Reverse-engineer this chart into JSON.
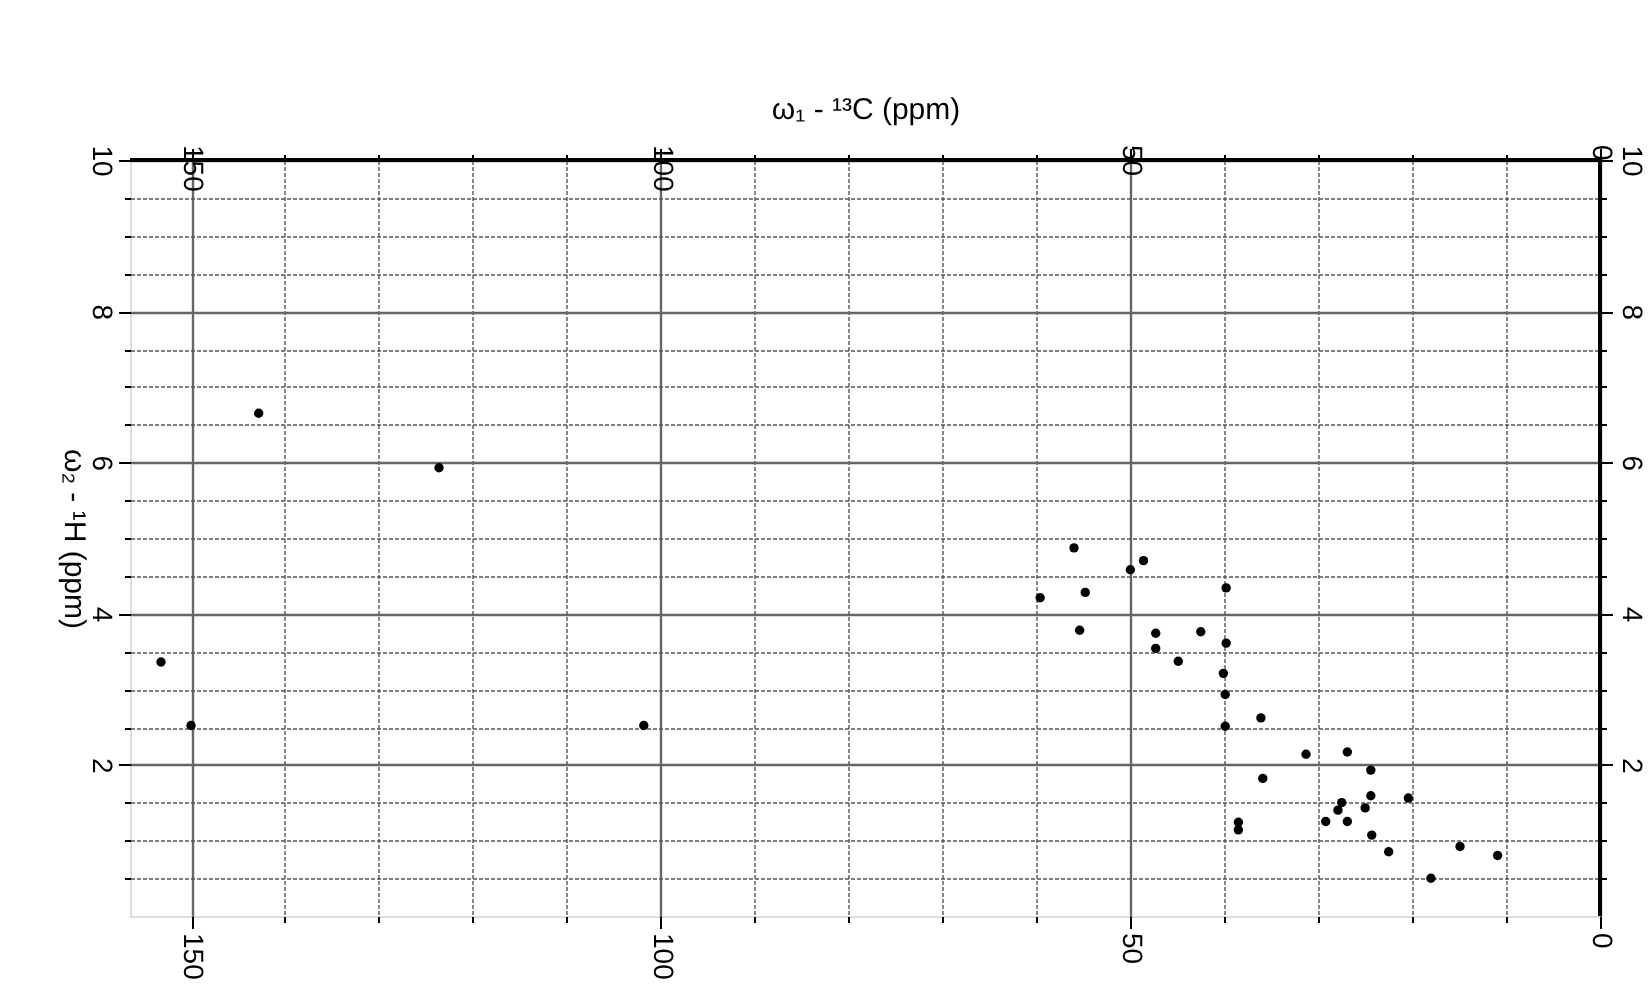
{
  "chart_data": {
    "type": "scatter",
    "xlabel": "ω₁ - ¹³C  (ppm)",
    "ylabel": "ω₂ - ¹H (ppm)",
    "x": [
      142.8,
      123.6,
      153.2,
      150.0,
      101.8,
      56.0,
      50.0,
      48.6,
      59.6,
      54.8,
      55.4,
      47.3,
      47.3,
      44.9,
      42.5,
      39.8,
      39.8,
      40.1,
      39.9,
      39.9,
      36.1,
      35.9,
      31.3,
      38.5,
      38.5,
      29.2,
      27.9,
      27.5,
      26.9,
      24.4,
      24.4,
      24.3,
      22.5,
      20.4,
      14.9,
      10.9,
      26.9,
      25.0,
      18.0
    ],
    "values": [
      6.65,
      5.93,
      3.36,
      2.52,
      2.52,
      4.87,
      4.58,
      4.7,
      4.21,
      4.28,
      3.78,
      3.74,
      3.54,
      3.37,
      3.76,
      4.34,
      3.61,
      3.21,
      2.93,
      2.51,
      2.62,
      1.82,
      2.14,
      1.24,
      1.14,
      1.25,
      1.4,
      1.5,
      1.25,
      1.59,
      1.93,
      1.07,
      0.85,
      1.56,
      0.92,
      0.8,
      2.17,
      1.43,
      0.5
    ],
    "color": "#000000",
    "marker": "circle",
    "xlim": [
      156.5,
      0
    ],
    "ylim": [
      0,
      10
    ],
    "xticks": [
      150,
      {
        "value": 140,
        "label": null
      },
      {
        "value": 130,
        "label": null
      },
      {
        "value": 120,
        "label": null
      },
      {
        "value": 110,
        "label": null
      },
      100,
      {
        "value": 90,
        "label": null
      },
      {
        "value": 80,
        "label": null
      },
      {
        "value": 70,
        "label": null
      },
      {
        "value": 60,
        "label": null
      },
      50,
      {
        "value": 40,
        "label": null
      },
      {
        "value": 30,
        "label": null
      },
      {
        "value": 20,
        "label": null
      },
      {
        "value": 10,
        "label": null
      },
      0
    ],
    "x2lim": [
      156.5,
      0
    ],
    "x2ticks": [
      150,
      {
        "value": 140,
        "label": null
      },
      {
        "value": 130,
        "label": null
      },
      {
        "value": 120,
        "label": null
      },
      {
        "value": 110,
        "label": null
      },
      100,
      {
        "value": 90,
        "label": null
      },
      {
        "value": 80,
        "label": null
      },
      {
        "value": 70,
        "label": null
      },
      {
        "value": 60,
        "label": null
      },
      50,
      {
        "value": 40,
        "label": null
      },
      {
        "value": 30,
        "label": null
      },
      {
        "value": 20,
        "label": null
      },
      {
        "value": 10,
        "label": null
      },
      0
    ],
    "yticks": [
      {
        "value": 0.5,
        "label": null
      },
      {
        "value": 1,
        "label": null
      },
      {
        "value": 1.5,
        "label": null
      },
      2,
      {
        "value": 2.5,
        "label": null
      },
      {
        "value": 3,
        "label": null
      },
      {
        "value": 3.5,
        "label": null
      },
      4,
      {
        "value": 4.5,
        "label": null
      },
      {
        "value": 5,
        "label": null
      },
      {
        "value": 5.5,
        "label": null
      },
      6,
      {
        "value": 6.5,
        "label": null
      },
      {
        "value": 7,
        "label": null
      },
      {
        "value": 7.5,
        "label": null
      },
      8,
      {
        "value": 8.5,
        "label": null
      },
      {
        "value": 9,
        "label": null
      },
      {
        "value": 9.5,
        "label": null
      },
      10
    ],
    "y2lim": [
      0,
      10
    ],
    "y2ticks": [
      {
        "value": 0.5,
        "label": null
      },
      {
        "value": 1,
        "label": null
      },
      {
        "value": 1.5,
        "label": null
      },
      2,
      {
        "value": 2.5,
        "label": null
      },
      {
        "value": 3,
        "label": null
      },
      {
        "value": 3.5,
        "label": null
      },
      4,
      {
        "value": 4.5,
        "label": null
      },
      {
        "value": 5,
        "label": null
      },
      {
        "value": 5.5,
        "label": null
      },
      6,
      {
        "value": 6.5,
        "label": null
      },
      {
        "value": 7,
        "label": null
      },
      {
        "value": 7.5,
        "label": null
      },
      8,
      {
        "value": 8.5,
        "label": null
      },
      {
        "value": 9,
        "label": null
      },
      {
        "value": 9.5,
        "label": null
      },
      10
    ],
    "grid": true
  }
}
